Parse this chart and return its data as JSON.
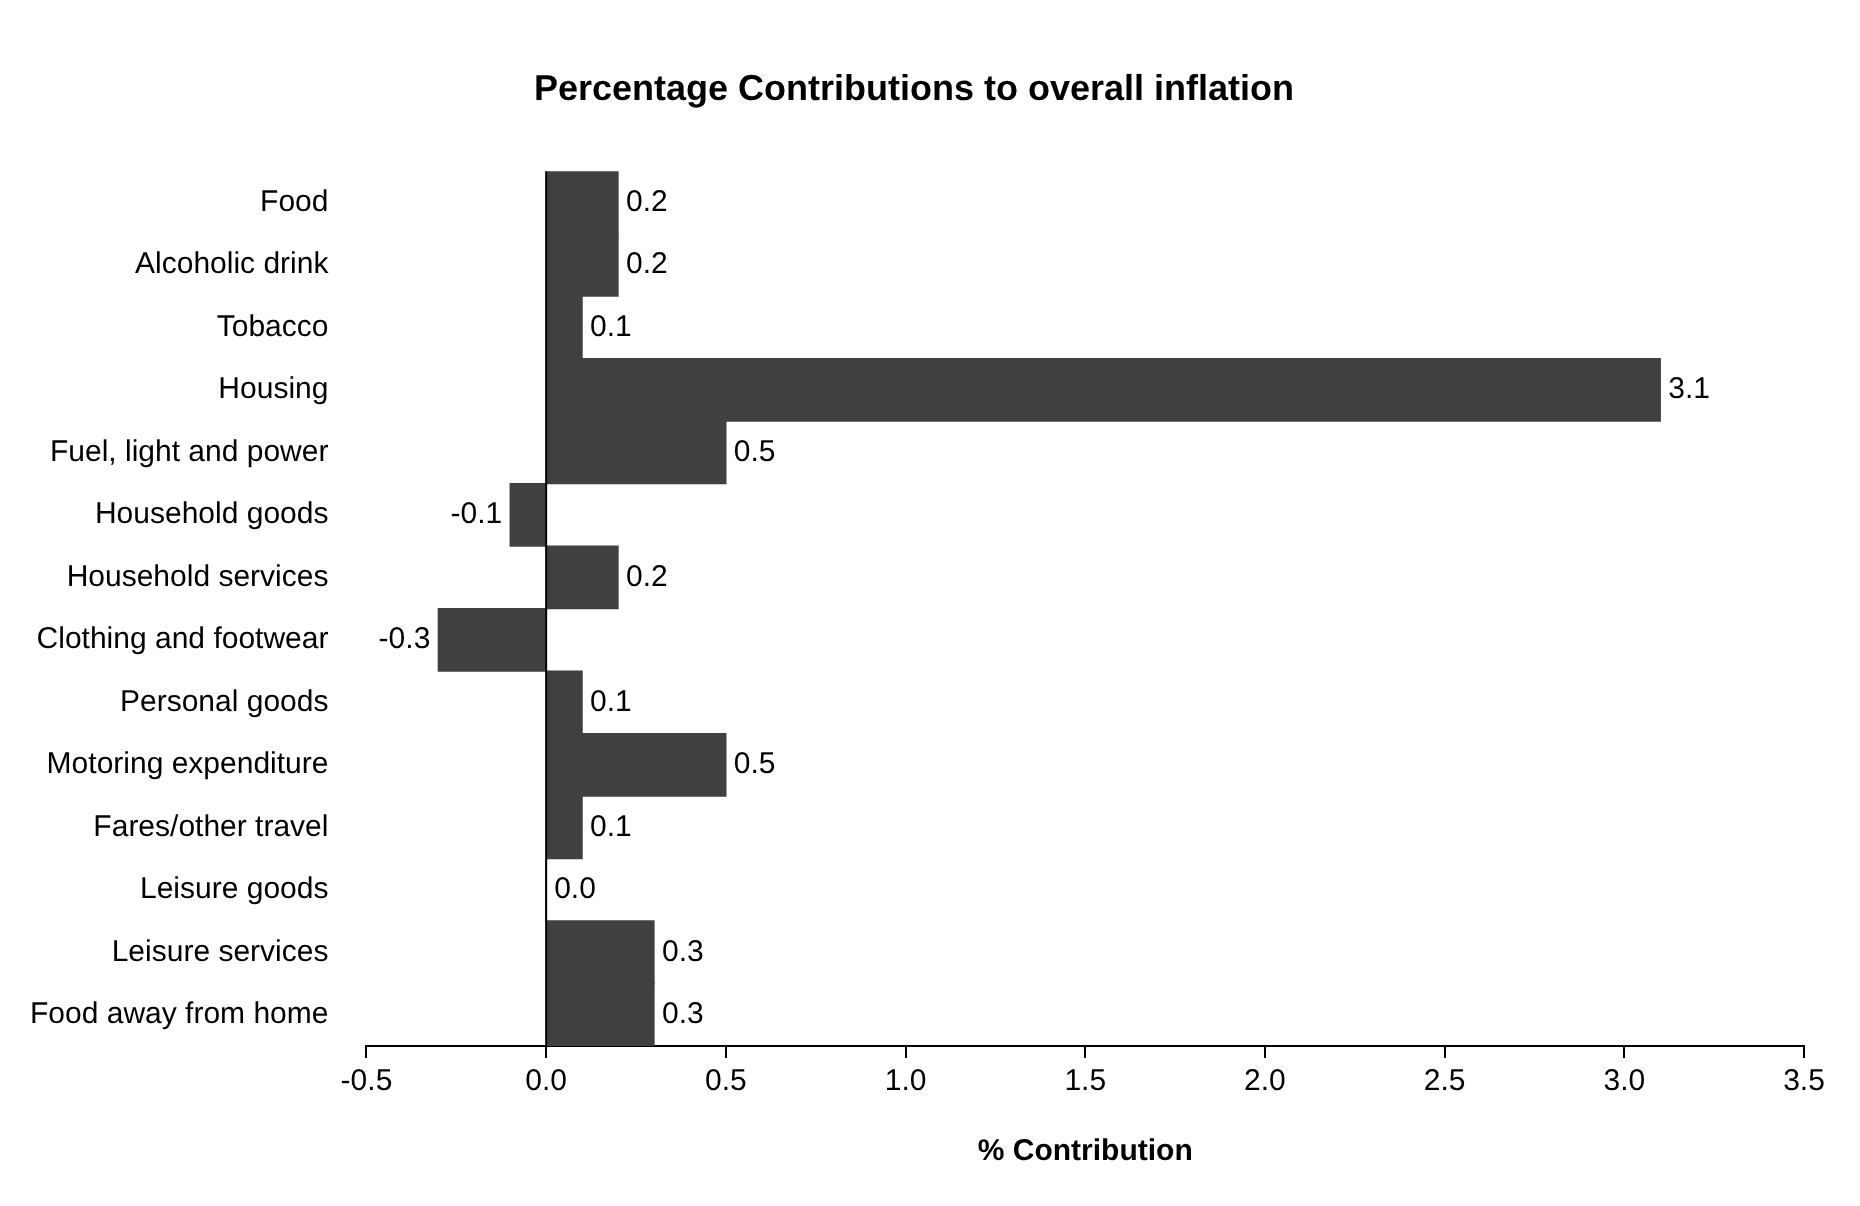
{
  "chart_data": {
    "type": "bar",
    "orientation": "horizontal",
    "title": "Percentage Contributions to overall inflation",
    "xlabel": "% Contribution",
    "categories": [
      "Food",
      "Alcoholic drink",
      "Tobacco",
      "Housing",
      "Fuel, light and power",
      "Household goods",
      "Household services",
      "Clothing and footwear",
      "Personal goods",
      "Motoring expenditure",
      "Fares/other travel",
      "Leisure goods",
      "Leisure services",
      "Food away from home"
    ],
    "values": [
      0.2,
      0.2,
      0.1,
      3.1,
      0.5,
      -0.1,
      0.2,
      -0.3,
      0.1,
      0.5,
      0.1,
      0.0,
      0.3,
      0.3
    ],
    "value_labels": [
      "0.2",
      "0.2",
      "0.1",
      "3.1",
      "0.5",
      "-0.1",
      "0.2",
      "-0.3",
      "0.1",
      "0.5",
      "0.1",
      "0.0",
      "0.3",
      "0.3"
    ],
    "color": "#404040",
    "xlim": [
      -0.5,
      3.5
    ],
    "xticks": [
      {
        "value": -0.5,
        "label": "-0.5"
      },
      {
        "value": 0,
        "label": "0.0"
      },
      {
        "value": 0.5,
        "label": "0.5"
      },
      {
        "value": 1,
        "label": "1.0"
      },
      {
        "value": 1.5,
        "label": "1.5"
      },
      {
        "value": 2,
        "label": "2.0"
      },
      {
        "value": 2.5,
        "label": "2.5"
      },
      {
        "value": 3,
        "label": "3.0"
      },
      {
        "value": 3.5,
        "label": "3.5"
      }
    ],
    "ref_lines": [
      {
        "axis": "x",
        "value": 0,
        "color": "#000000"
      }
    ],
    "grid": false,
    "legend": false
  }
}
